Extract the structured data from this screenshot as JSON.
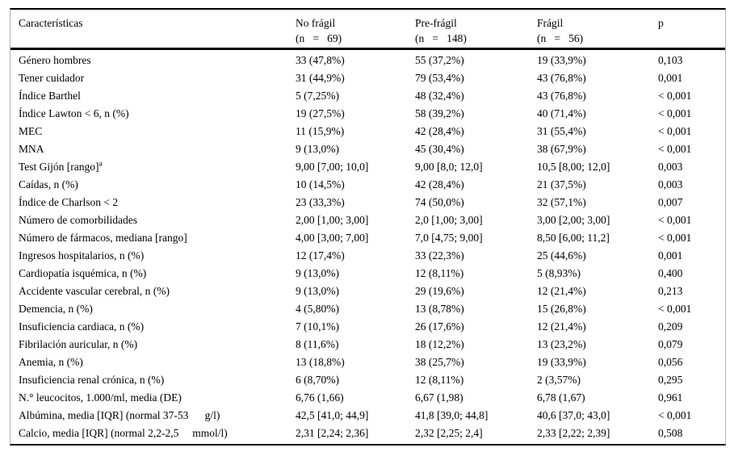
{
  "table": {
    "columns": [
      {
        "label": "Características",
        "sub": ""
      },
      {
        "label": "No frágil",
        "sub": "(n   =   69)"
      },
      {
        "label": "Pre-frágil",
        "sub": "(n   =   148)"
      },
      {
        "label": "Frágil",
        "sub": "(n   =   56)"
      },
      {
        "label": "p",
        "sub": ""
      }
    ],
    "rows": [
      {
        "c": [
          "Género hombres",
          "33 (47,8%)",
          "55 (37,2%)",
          "19 (33,9%)",
          "0,103"
        ]
      },
      {
        "c": [
          "Tener cuidador",
          "31 (44,9%)",
          "79 (53,4%)",
          "43 (76,8%)",
          "0,001"
        ]
      },
      {
        "c": [
          "Índice Barthel",
          "5 (7,25%)",
          "48 (32,4%)",
          "43 (76,8%)",
          "< 0,001"
        ]
      },
      {
        "c": [
          "Índice Lawton < 6, n (%)",
          "19 (27,5%)",
          "58 (39,2%)",
          "40 (71,4%)",
          "< 0,001"
        ]
      },
      {
        "c": [
          "MEC",
          "11 (15,9%)",
          "42 (28,4%)",
          "31 (55,4%)",
          "< 0,001"
        ]
      },
      {
        "c": [
          "MNA",
          "9 (13,0%)",
          "45 (30,4%)",
          "38 (67,9%)",
          "< 0,001"
        ]
      },
      {
        "c": [
          "Test Gijón [rango]",
          "9,00 [7,00; 10,0]",
          "9,00 [8,0; 12,0]",
          "10,5 [8,00; 12,0]",
          "0,003"
        ],
        "sup": "a"
      },
      {
        "c": [
          "Caídas, n (%)",
          "10 (14,5%)",
          "42 (28,4%)",
          "21 (37,5%)",
          "0,003"
        ]
      },
      {
        "c": [
          "Índice de Charlson < 2",
          "23 (33,3%)",
          "74 (50,0%)",
          "32 (57,1%)",
          "0,007"
        ]
      },
      {
        "c": [
          "Número de comorbilidades",
          "2,00 [1,00; 3,00]",
          "2,0 [1,00; 3,00]",
          "3,00 [2,00; 3,00]",
          "< 0,001"
        ]
      },
      {
        "c": [
          "Número de fármacos, mediana [rango]",
          "4,00 [3,00; 7,00]",
          "7,0 [4,75; 9,00]",
          "8,50 [6,00; 11,2]",
          "< 0,001"
        ]
      },
      {
        "c": [
          "Ingresos hospitalarios, n (%)",
          "12 (17,4%)",
          "33 (22,3%)",
          "25 (44,6%)",
          "0,001"
        ]
      },
      {
        "c": [
          "Cardiopatía isquémica, n (%)",
          "9 (13,0%)",
          "12 (8,11%)",
          "5 (8,93%)",
          "0,400"
        ]
      },
      {
        "c": [
          "Accidente vascular cerebral, n (%)",
          "9 (13,0%)",
          "29 (19,6%)",
          "12 (21,4%)",
          "0,213"
        ]
      },
      {
        "c": [
          "Demencia, n (%)",
          "4 (5,80%)",
          "13 (8,78%)",
          "15 (26,8%)",
          "< 0,001"
        ]
      },
      {
        "c": [
          "Insuficiencia cardiaca, n (%)",
          "7 (10,1%)",
          "26 (17,6%)",
          "12 (21,4%)",
          "0,209"
        ]
      },
      {
        "c": [
          "Fibrilación auricular, n (%)",
          "8 (11,6%)",
          "18 (12,2%)",
          "13 (23,2%)",
          "0,079"
        ]
      },
      {
        "c": [
          "Anemia, n (%)",
          "13 (18,8%)",
          "38 (25,7%)",
          "19 (33,9%)",
          "0,056"
        ]
      },
      {
        "c": [
          "Insuficiencia renal crónica, n (%)",
          "6 (8,70%)",
          "12 (8,11%)",
          "2 (3,57%)",
          "0,295"
        ]
      },
      {
        "c": [
          "N.° leucocitos, 1.000/ml, media (DE)",
          "6,76 (1,66)",
          "6,67 (1,98)",
          "6,78 (1,67)",
          "0,961"
        ]
      },
      {
        "c": [
          "Albúmina, media [IQR] (normal 37-53      g/l)",
          "42,5 [41,0; 44,9]",
          "41,8 [39,0; 44,8]",
          "40,6 [37,0; 43,0]",
          "< 0,001"
        ]
      },
      {
        "c": [
          "Calcio, media [IQR] (normal 2,2-2,5     mmol/l)",
          "2,31 [2,24; 2,36]",
          "2,32 [2,25; 2,4]",
          "2,33 [2,22; 2,39]",
          "0,508"
        ]
      }
    ]
  }
}
